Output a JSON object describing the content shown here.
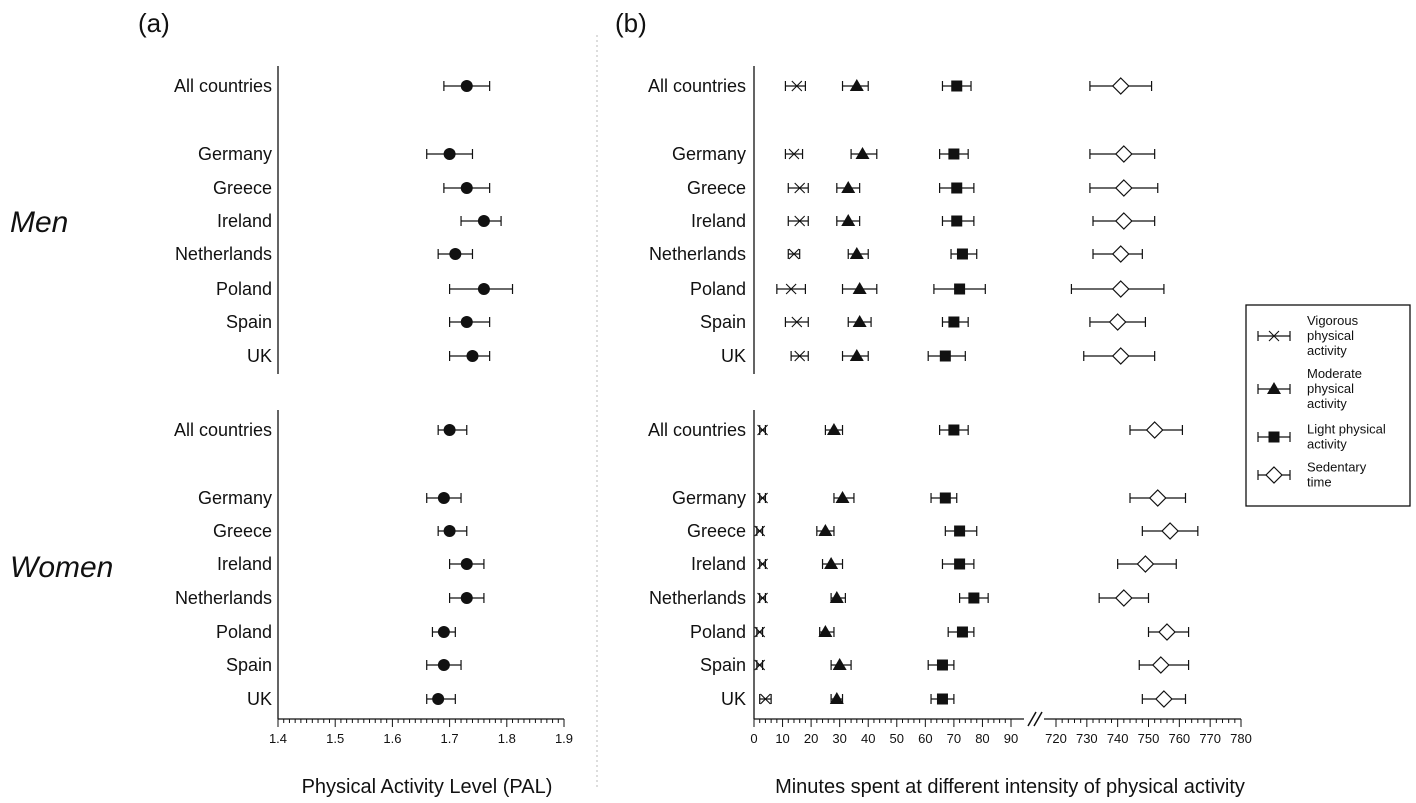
{
  "panels": {
    "a": "(a)",
    "b": "(b)"
  },
  "groups": {
    "men": "Men",
    "women": "Women"
  },
  "legend": [
    {
      "key": "vigorous",
      "marker": "cross",
      "label": [
        "Vigorous",
        "physical",
        "activity"
      ]
    },
    {
      "key": "moderate",
      "marker": "triangle",
      "label": [
        "Moderate",
        "physical",
        "activity"
      ]
    },
    {
      "key": "light",
      "marker": "square",
      "label": [
        "Light physical",
        "activity"
      ]
    },
    {
      "key": "sedentary",
      "marker": "diamond",
      "label": [
        "Sedentary",
        "time"
      ]
    }
  ],
  "chart_data": [
    {
      "type": "scatter",
      "panel": "(a)",
      "xlabel": "Physical Activity Level (PAL)",
      "xlim": [
        1.4,
        1.9
      ],
      "xticks": [
        "1.4",
        "1.5",
        "1.6",
        "1.7",
        "1.8",
        "1.9"
      ],
      "categories": [
        "All countries",
        "Germany",
        "Greece",
        "Ireland",
        "Netherlands",
        "Poland",
        "Spain",
        "UK"
      ],
      "series": [
        {
          "group": "Men",
          "marker": "circle",
          "mean": [
            1.73,
            1.7,
            1.73,
            1.76,
            1.71,
            1.76,
            1.73,
            1.74
          ],
          "lower": [
            1.69,
            1.66,
            1.69,
            1.72,
            1.68,
            1.7,
            1.7,
            1.7
          ],
          "upper": [
            1.77,
            1.74,
            1.77,
            1.79,
            1.74,
            1.81,
            1.77,
            1.77
          ]
        },
        {
          "group": "Women",
          "marker": "circle",
          "mean": [
            1.7,
            1.69,
            1.7,
            1.73,
            1.73,
            1.69,
            1.69,
            1.68
          ],
          "lower": [
            1.68,
            1.66,
            1.68,
            1.7,
            1.7,
            1.67,
            1.66,
            1.66
          ],
          "upper": [
            1.73,
            1.72,
            1.73,
            1.76,
            1.76,
            1.71,
            1.72,
            1.71
          ]
        }
      ]
    },
    {
      "type": "scatter",
      "panel": "(b)",
      "xlabel": "Minutes spent at different intensity of physical activity",
      "xlim_left": [
        0,
        90
      ],
      "xlim_right": [
        720,
        780
      ],
      "xticks_left": [
        "0",
        "10",
        "20",
        "30",
        "40",
        "50",
        "60",
        "70",
        "80",
        "90"
      ],
      "xticks_right": [
        "720",
        "730",
        "740",
        "750",
        "760",
        "770",
        "780"
      ],
      "categories": [
        "All countries",
        "Germany",
        "Greece",
        "Ireland",
        "Netherlands",
        "Poland",
        "Spain",
        "UK"
      ],
      "series": [
        {
          "group": "Men",
          "name": "Vigorous physical activity",
          "marker": "cross",
          "mean": [
            15,
            14,
            16,
            16,
            14,
            13,
            15,
            16
          ],
          "lower": [
            11,
            11,
            12,
            12,
            12,
            8,
            11,
            13
          ],
          "upper": [
            18,
            17,
            19,
            19,
            16,
            18,
            19,
            19
          ]
        },
        {
          "group": "Men",
          "name": "Moderate physical activity",
          "marker": "triangle",
          "mean": [
            36,
            38,
            33,
            33,
            36,
            37,
            37,
            36
          ],
          "lower": [
            31,
            34,
            29,
            29,
            33,
            31,
            33,
            31
          ],
          "upper": [
            40,
            43,
            37,
            37,
            40,
            43,
            41,
            40
          ]
        },
        {
          "group": "Men",
          "name": "Light physical activity",
          "marker": "square",
          "mean": [
            71,
            70,
            71,
            71,
            73,
            72,
            70,
            67
          ],
          "lower": [
            66,
            65,
            65,
            66,
            69,
            63,
            66,
            61
          ],
          "upper": [
            76,
            75,
            77,
            77,
            78,
            81,
            75,
            74
          ]
        },
        {
          "group": "Men",
          "name": "Sedentary time",
          "marker": "diamond",
          "mean": [
            741,
            742,
            742,
            742,
            741,
            741,
            740,
            741
          ],
          "lower": [
            731,
            731,
            731,
            732,
            732,
            725,
            731,
            729
          ],
          "upper": [
            751,
            752,
            753,
            752,
            748,
            755,
            749,
            752
          ]
        },
        {
          "group": "Women",
          "name": "Vigorous physical activity",
          "marker": "cross",
          "mean": [
            3,
            3,
            2,
            3,
            3,
            2,
            2,
            4
          ],
          "lower": [
            2,
            2,
            1,
            2,
            2,
            1,
            1,
            2
          ],
          "upper": [
            4,
            4,
            3,
            4,
            4,
            3,
            3,
            6
          ]
        },
        {
          "group": "Women",
          "name": "Moderate physical activity",
          "marker": "triangle",
          "mean": [
            28,
            31,
            25,
            27,
            29,
            25,
            30,
            29
          ],
          "lower": [
            25,
            28,
            22,
            24,
            27,
            23,
            27,
            27
          ],
          "upper": [
            31,
            35,
            28,
            31,
            32,
            28,
            34,
            31
          ]
        },
        {
          "group": "Women",
          "name": "Light physical activity",
          "marker": "square",
          "mean": [
            70,
            67,
            72,
            72,
            77,
            73,
            66,
            66
          ],
          "lower": [
            65,
            62,
            67,
            66,
            72,
            68,
            61,
            62
          ],
          "upper": [
            75,
            71,
            78,
            77,
            82,
            77,
            70,
            70
          ]
        },
        {
          "group": "Women",
          "name": "Sedentary time",
          "marker": "diamond",
          "mean": [
            752,
            753,
            757,
            749,
            742,
            756,
            754,
            755
          ],
          "lower": [
            744,
            744,
            748,
            740,
            734,
            750,
            747,
            748
          ],
          "upper": [
            761,
            762,
            766,
            759,
            750,
            763,
            763,
            762
          ]
        }
      ]
    }
  ]
}
